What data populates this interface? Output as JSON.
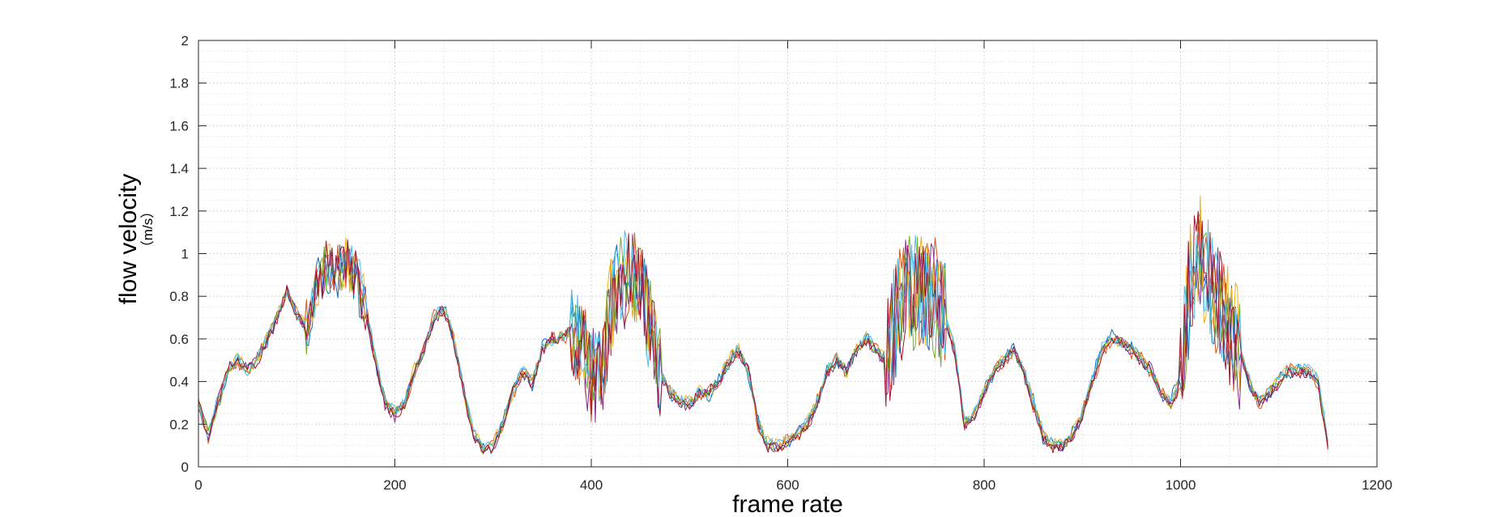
{
  "chart_data": {
    "type": "line",
    "title": "",
    "xlabel": "frame rate",
    "ylabel": "flow velocity",
    "ylabel_unit": "（m/s）",
    "xlim": [
      0,
      1200
    ],
    "ylim": [
      0,
      2
    ],
    "x_ticks": [
      "0",
      "200",
      "400",
      "600",
      "800",
      "1000",
      "1200"
    ],
    "y_ticks": [
      "0",
      "0.2",
      "0.4",
      "0.6",
      "0.8",
      "1",
      "1.2",
      "1.4",
      "1.6",
      "1.8",
      "2"
    ],
    "grid": "dotted-major-and-minor",
    "legend": "none",
    "series_colors": [
      "#0072BD",
      "#D95319",
      "#EDB120",
      "#7E2F8E",
      "#77AC30",
      "#4DBEEE",
      "#A2142F"
    ],
    "x_points": [
      0,
      10,
      20,
      30,
      40,
      50,
      60,
      70,
      80,
      90,
      100,
      110,
      120,
      130,
      140,
      150,
      160,
      170,
      180,
      190,
      200,
      210,
      220,
      230,
      240,
      250,
      260,
      270,
      280,
      290,
      300,
      310,
      320,
      330,
      340,
      350,
      360,
      370,
      380,
      390,
      400,
      410,
      420,
      430,
      440,
      450,
      460,
      470,
      480,
      490,
      500,
      510,
      520,
      530,
      540,
      550,
      560,
      570,
      580,
      590,
      600,
      610,
      620,
      630,
      640,
      650,
      660,
      670,
      680,
      690,
      700,
      710,
      720,
      730,
      740,
      750,
      760,
      770,
      780,
      790,
      800,
      810,
      820,
      830,
      840,
      850,
      860,
      870,
      880,
      890,
      900,
      910,
      920,
      930,
      940,
      950,
      960,
      970,
      980,
      990,
      1000,
      1010,
      1020,
      1030,
      1040,
      1050,
      1060,
      1070,
      1080,
      1090,
      1100,
      1110,
      1120,
      1130,
      1140,
      1150
    ],
    "mean_profile": [
      0.3,
      0.15,
      0.3,
      0.45,
      0.5,
      0.45,
      0.5,
      0.6,
      0.7,
      0.82,
      0.72,
      0.65,
      0.85,
      0.95,
      0.92,
      0.95,
      0.9,
      0.75,
      0.5,
      0.3,
      0.25,
      0.3,
      0.45,
      0.55,
      0.7,
      0.75,
      0.6,
      0.35,
      0.15,
      0.08,
      0.1,
      0.2,
      0.35,
      0.45,
      0.4,
      0.55,
      0.6,
      0.6,
      0.65,
      0.55,
      0.45,
      0.42,
      0.75,
      0.85,
      0.9,
      0.85,
      0.65,
      0.45,
      0.35,
      0.3,
      0.3,
      0.35,
      0.35,
      0.4,
      0.5,
      0.55,
      0.45,
      0.2,
      0.1,
      0.1,
      0.12,
      0.15,
      0.2,
      0.3,
      0.45,
      0.5,
      0.45,
      0.55,
      0.6,
      0.55,
      0.5,
      0.7,
      0.8,
      0.8,
      0.82,
      0.78,
      0.7,
      0.55,
      0.2,
      0.25,
      0.35,
      0.45,
      0.5,
      0.55,
      0.45,
      0.3,
      0.15,
      0.1,
      0.1,
      0.15,
      0.25,
      0.4,
      0.55,
      0.6,
      0.58,
      0.55,
      0.5,
      0.45,
      0.35,
      0.3,
      0.4,
      0.9,
      1.0,
      0.85,
      0.75,
      0.65,
      0.55,
      0.4,
      0.3,
      0.35,
      0.4,
      0.45,
      0.45,
      0.45,
      0.4,
      0.1
    ],
    "series": [
      {
        "values": [
          0.31,
          0.17,
          0.27,
          0.43,
          0.51,
          0.47,
          0.5,
          0.58,
          0.71,
          0.81,
          0.74,
          0.63,
          0.88,
          0.93,
          0.9,
          0.98,
          0.87,
          0.74,
          0.48,
          0.32,
          0.24,
          0.31,
          0.46,
          0.55,
          0.69,
          0.77,
          0.58,
          0.36,
          0.13,
          0.1,
          0.08,
          0.22,
          0.36,
          0.47,
          0.38,
          0.57,
          0.6,
          0.61,
          0.66,
          0.52,
          0.47,
          0.44,
          0.73,
          0.9,
          0.86,
          0.88,
          0.62,
          0.46,
          0.33,
          0.31,
          0.28,
          0.37,
          0.33,
          0.42,
          0.48,
          0.57,
          0.42,
          0.22,
          0.09,
          0.12,
          0.1,
          0.16,
          0.21,
          0.28,
          0.47,
          0.48,
          0.47,
          0.53,
          0.62,
          0.54,
          0.52,
          0.66,
          0.84,
          0.76,
          0.86,
          0.75,
          0.72,
          0.52,
          0.22,
          0.23,
          0.37,
          0.43,
          0.52,
          0.57,
          0.43,
          0.32,
          0.13,
          0.12,
          0.08,
          0.17,
          0.23,
          0.42,
          0.57,
          0.63,
          0.56,
          0.57,
          0.48,
          0.46,
          0.33,
          0.32,
          0.43,
          0.86,
          1.04,
          0.82,
          0.78,
          0.62,
          0.57,
          0.38,
          0.32,
          0.33,
          0.42,
          0.43,
          0.47,
          0.44,
          0.42,
          0.12
        ]
      },
      {
        "values": [
          0.28,
          0.13,
          0.32,
          0.46,
          0.48,
          0.44,
          0.52,
          0.62,
          0.69,
          0.83,
          0.7,
          0.67,
          0.83,
          0.97,
          0.94,
          0.93,
          0.92,
          0.77,
          0.52,
          0.28,
          0.27,
          0.29,
          0.44,
          0.56,
          0.72,
          0.73,
          0.62,
          0.34,
          0.17,
          0.07,
          0.12,
          0.19,
          0.33,
          0.44,
          0.42,
          0.53,
          0.62,
          0.58,
          0.64,
          0.57,
          0.43,
          0.41,
          0.78,
          0.82,
          0.94,
          0.83,
          0.67,
          0.44,
          0.37,
          0.29,
          0.32,
          0.33,
          0.37,
          0.38,
          0.52,
          0.53,
          0.47,
          0.18,
          0.11,
          0.08,
          0.14,
          0.13,
          0.19,
          0.32,
          0.43,
          0.52,
          0.43,
          0.57,
          0.58,
          0.57,
          0.48,
          0.74,
          0.77,
          0.84,
          0.79,
          0.81,
          0.68,
          0.57,
          0.18,
          0.27,
          0.33,
          0.47,
          0.48,
          0.53,
          0.47,
          0.28,
          0.17,
          0.08,
          0.12,
          0.13,
          0.27,
          0.38,
          0.53,
          0.58,
          0.6,
          0.53,
          0.52,
          0.43,
          0.37,
          0.28,
          0.37,
          0.94,
          0.97,
          0.88,
          0.72,
          0.68,
          0.53,
          0.42,
          0.28,
          0.37,
          0.38,
          0.47,
          0.43,
          0.47,
          0.38,
          0.08
        ]
      },
      {
        "values": [
          0.33,
          0.16,
          0.29,
          0.44,
          0.52,
          0.44,
          0.49,
          0.61,
          0.72,
          0.8,
          0.73,
          0.66,
          0.86,
          0.96,
          0.91,
          0.96,
          0.89,
          0.76,
          0.51,
          0.31,
          0.26,
          0.28,
          0.47,
          0.54,
          0.71,
          0.76,
          0.61,
          0.33,
          0.16,
          0.09,
          0.11,
          0.21,
          0.34,
          0.46,
          0.41,
          0.56,
          0.59,
          0.62,
          0.63,
          0.56,
          0.46,
          0.43,
          0.76,
          0.86,
          0.91,
          0.86,
          0.64,
          0.47,
          0.36,
          0.32,
          0.31,
          0.36,
          0.34,
          0.41,
          0.51,
          0.56,
          0.44,
          0.21,
          0.12,
          0.11,
          0.13,
          0.14,
          0.22,
          0.31,
          0.46,
          0.51,
          0.44,
          0.56,
          0.61,
          0.56,
          0.51,
          0.71,
          0.81,
          0.79,
          0.83,
          0.77,
          0.71,
          0.56,
          0.21,
          0.26,
          0.36,
          0.46,
          0.51,
          0.54,
          0.46,
          0.31,
          0.16,
          0.11,
          0.11,
          0.16,
          0.26,
          0.41,
          0.56,
          0.61,
          0.57,
          0.56,
          0.51,
          0.44,
          0.36,
          0.31,
          0.41,
          0.91,
          1.01,
          0.84,
          0.76,
          0.66,
          0.56,
          0.41,
          0.31,
          0.36,
          0.41,
          0.46,
          0.44,
          0.46,
          0.41,
          0.11
        ]
      },
      {
        "values": [
          0.27,
          0.14,
          0.31,
          0.47,
          0.49,
          0.46,
          0.51,
          0.59,
          0.68,
          0.84,
          0.71,
          0.64,
          0.84,
          0.94,
          0.93,
          0.94,
          0.91,
          0.73,
          0.49,
          0.29,
          0.23,
          0.32,
          0.43,
          0.57,
          0.68,
          0.74,
          0.59,
          0.37,
          0.14,
          0.07,
          0.09,
          0.18,
          0.37,
          0.43,
          0.39,
          0.54,
          0.61,
          0.59,
          0.67,
          0.54,
          0.44,
          0.4,
          0.74,
          0.84,
          0.89,
          0.84,
          0.66,
          0.43,
          0.34,
          0.28,
          0.29,
          0.34,
          0.36,
          0.39,
          0.49,
          0.54,
          0.46,
          0.19,
          0.08,
          0.09,
          0.11,
          0.17,
          0.18,
          0.29,
          0.44,
          0.49,
          0.46,
          0.54,
          0.59,
          0.53,
          0.49,
          0.69,
          0.79,
          0.81,
          0.81,
          0.79,
          0.69,
          0.54,
          0.19,
          0.24,
          0.34,
          0.44,
          0.49,
          0.56,
          0.44,
          0.29,
          0.14,
          0.09,
          0.09,
          0.14,
          0.24,
          0.39,
          0.54,
          0.59,
          0.59,
          0.54,
          0.49,
          0.47,
          0.34,
          0.29,
          0.39,
          0.89,
          0.99,
          0.86,
          0.74,
          0.64,
          0.54,
          0.39,
          0.29,
          0.34,
          0.39,
          0.44,
          0.46,
          0.44,
          0.39,
          0.09
        ]
      },
      {
        "values": [
          0.32,
          0.16,
          0.28,
          0.45,
          0.5,
          0.45,
          0.5,
          0.6,
          0.7,
          0.82,
          0.72,
          0.65,
          0.87,
          0.95,
          0.92,
          0.97,
          0.9,
          0.75,
          0.5,
          0.3,
          0.25,
          0.3,
          0.45,
          0.55,
          0.7,
          0.75,
          0.6,
          0.35,
          0.15,
          0.08,
          0.1,
          0.2,
          0.35,
          0.45,
          0.4,
          0.55,
          0.6,
          0.6,
          0.65,
          0.55,
          0.45,
          0.42,
          0.75,
          0.88,
          0.9,
          0.87,
          0.65,
          0.45,
          0.35,
          0.3,
          0.3,
          0.35,
          0.35,
          0.4,
          0.5,
          0.55,
          0.45,
          0.2,
          0.1,
          0.1,
          0.12,
          0.15,
          0.2,
          0.3,
          0.45,
          0.5,
          0.45,
          0.55,
          0.6,
          0.55,
          0.5,
          0.72,
          0.82,
          0.8,
          0.84,
          0.78,
          0.7,
          0.55,
          0.2,
          0.25,
          0.35,
          0.45,
          0.5,
          0.55,
          0.45,
          0.3,
          0.15,
          0.1,
          0.1,
          0.15,
          0.25,
          0.4,
          0.55,
          0.6,
          0.58,
          0.55,
          0.5,
          0.45,
          0.35,
          0.3,
          0.4,
          0.92,
          1.02,
          0.85,
          0.75,
          0.65,
          0.55,
          0.4,
          0.3,
          0.35,
          0.4,
          0.45,
          0.45,
          0.45,
          0.4,
          0.1
        ]
      },
      {
        "values": [
          0.29,
          0.15,
          0.33,
          0.44,
          0.51,
          0.43,
          0.52,
          0.61,
          0.71,
          0.8,
          0.73,
          0.66,
          0.86,
          0.96,
          0.91,
          0.95,
          0.92,
          0.76,
          0.53,
          0.31,
          0.26,
          0.31,
          0.44,
          0.54,
          0.71,
          0.76,
          0.61,
          0.36,
          0.16,
          0.09,
          0.11,
          0.21,
          0.34,
          0.46,
          0.41,
          0.56,
          0.59,
          0.61,
          0.64,
          0.56,
          0.46,
          0.43,
          0.77,
          0.86,
          0.92,
          0.86,
          0.64,
          0.46,
          0.36,
          0.31,
          0.31,
          0.36,
          0.34,
          0.41,
          0.51,
          0.56,
          0.44,
          0.21,
          0.11,
          0.11,
          0.13,
          0.16,
          0.21,
          0.31,
          0.46,
          0.51,
          0.44,
          0.56,
          0.61,
          0.56,
          0.51,
          0.73,
          0.81,
          0.82,
          0.83,
          0.78,
          0.71,
          0.56,
          0.21,
          0.26,
          0.36,
          0.46,
          0.51,
          0.54,
          0.46,
          0.31,
          0.16,
          0.11,
          0.11,
          0.16,
          0.26,
          0.41,
          0.56,
          0.61,
          0.58,
          0.56,
          0.51,
          0.44,
          0.36,
          0.31,
          0.41,
          0.9,
          1.01,
          0.86,
          0.76,
          0.66,
          0.56,
          0.41,
          0.31,
          0.36,
          0.41,
          0.46,
          0.46,
          0.46,
          0.41,
          0.11
        ]
      },
      {
        "values": [
          0.3,
          0.14,
          0.3,
          0.46,
          0.49,
          0.46,
          0.49,
          0.59,
          0.69,
          0.83,
          0.71,
          0.64,
          0.84,
          0.94,
          0.93,
          0.96,
          0.89,
          0.74,
          0.49,
          0.29,
          0.24,
          0.29,
          0.46,
          0.56,
          0.69,
          0.74,
          0.59,
          0.34,
          0.14,
          0.07,
          0.09,
          0.19,
          0.36,
          0.44,
          0.39,
          0.54,
          0.61,
          0.59,
          0.66,
          0.54,
          0.44,
          0.41,
          0.74,
          0.84,
          0.89,
          0.84,
          0.66,
          0.44,
          0.34,
          0.29,
          0.29,
          0.34,
          0.36,
          0.39,
          0.49,
          0.54,
          0.46,
          0.19,
          0.09,
          0.09,
          0.11,
          0.14,
          0.19,
          0.29,
          0.44,
          0.49,
          0.46,
          0.54,
          0.59,
          0.54,
          0.49,
          0.69,
          0.79,
          0.79,
          0.81,
          0.79,
          0.69,
          0.54,
          0.19,
          0.24,
          0.34,
          0.44,
          0.49,
          0.56,
          0.44,
          0.29,
          0.14,
          0.09,
          0.09,
          0.14,
          0.24,
          0.39,
          0.54,
          0.59,
          0.59,
          0.54,
          0.49,
          0.46,
          0.34,
          0.29,
          0.39,
          0.89,
          0.99,
          0.84,
          0.74,
          0.64,
          0.54,
          0.39,
          0.29,
          0.34,
          0.39,
          0.44,
          0.44,
          0.44,
          0.39,
          0.09
        ]
      }
    ]
  }
}
